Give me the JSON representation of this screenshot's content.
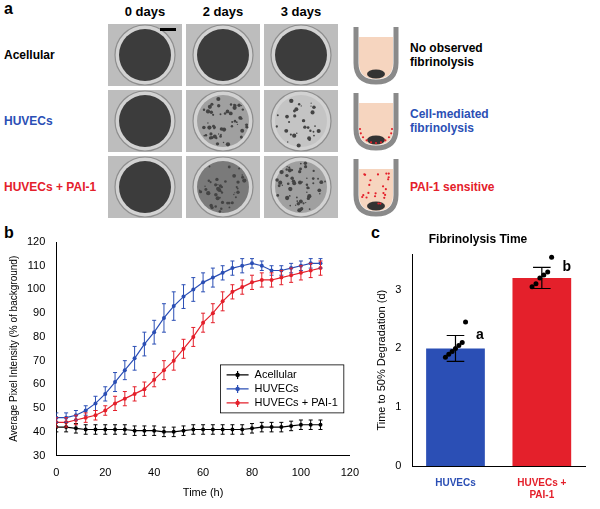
{
  "panel_a": {
    "panel": "a",
    "columns": [
      "0 days",
      "2 days",
      "3 days"
    ],
    "rows": [
      {
        "name": "Acellular",
        "color": "#000000",
        "note": "No observed fibrinolysis"
      },
      {
        "name": "HUVECs",
        "color": "#2b4fb5",
        "note": "Cell-mediated fibrinolysis"
      },
      {
        "name": "HUVECs + PAI-1",
        "color": "#e4202b",
        "note": "PAI-1 sensitive"
      }
    ]
  },
  "chart_data": [
    {
      "panel": "b",
      "type": "line",
      "x_label": "Time (h)",
      "y_label": "Average Pixel Intensity (% of background)",
      "xlim": [
        0,
        120
      ],
      "xticks": [
        0,
        20,
        40,
        60,
        80,
        100,
        120
      ],
      "ylim": [
        30,
        120
      ],
      "yticks": [
        30,
        40,
        50,
        60,
        70,
        80,
        90,
        100,
        110,
        120
      ],
      "grid": false,
      "legend": "lower right",
      "x": [
        0,
        4,
        8,
        12,
        16,
        20,
        24,
        28,
        32,
        36,
        40,
        44,
        48,
        52,
        56,
        60,
        64,
        68,
        72,
        76,
        80,
        84,
        88,
        92,
        96,
        100,
        104,
        108
      ],
      "series": [
        {
          "name": "Acellular",
          "color": "#000000",
          "marker": "circle",
          "values": [
            42,
            42,
            41.5,
            41,
            41,
            41,
            41,
            41,
            40.5,
            40.5,
            40.5,
            40,
            40,
            40.5,
            41,
            41,
            41,
            41,
            41,
            41,
            41.5,
            42,
            42,
            42,
            42.5,
            43,
            43,
            43
          ],
          "errors": [
            2,
            2,
            2,
            2,
            2,
            2,
            2,
            2,
            2,
            2,
            2,
            2,
            2,
            2,
            2,
            2,
            2,
            2,
            2,
            2,
            2,
            2,
            2,
            2,
            2,
            2,
            2,
            2
          ]
        },
        {
          "name": "HUVECs",
          "color": "#2b4fb5",
          "marker": "circle",
          "values": [
            46,
            46,
            47,
            49,
            52,
            56,
            61,
            66,
            71,
            77,
            82,
            88,
            93,
            97,
            100,
            103,
            105,
            107,
            109,
            110,
            111,
            110,
            108,
            108,
            109,
            110,
            111,
            111
          ],
          "errors": [
            2,
            2,
            2,
            2,
            3,
            3,
            4,
            4,
            5,
            5,
            5,
            6,
            6,
            5,
            5,
            4,
            4,
            3,
            3,
            3,
            2,
            2,
            2,
            2,
            2,
            2,
            2,
            2
          ]
        },
        {
          "name": "HUVECs + PAI-1",
          "color": "#e4202b",
          "marker": "circle",
          "values": [
            44,
            44,
            45,
            46,
            47,
            49,
            52,
            54,
            56,
            58,
            62,
            66,
            70,
            75,
            80,
            86,
            90,
            95,
            99,
            101,
            103,
            104,
            104,
            105,
            106,
            107,
            108,
            109
          ],
          "errors": [
            2,
            2,
            2,
            2,
            2,
            2,
            3,
            3,
            3,
            3,
            3,
            4,
            4,
            4,
            4,
            4,
            4,
            4,
            3,
            3,
            3,
            3,
            3,
            3,
            3,
            3,
            3,
            3
          ]
        }
      ]
    },
    {
      "panel": "c",
      "type": "bar",
      "title": "Fibrinolysis Time",
      "y_label": "Time to 50% Degradation (d)",
      "categories": [
        "HUVECs",
        "HUVECs + PAI-1"
      ],
      "values": [
        2.0,
        3.2
      ],
      "errors": [
        0.22,
        0.18
      ],
      "colors": [
        "#2b4fb5",
        "#e4202b"
      ],
      "points": [
        [
          1.85,
          1.9,
          1.95,
          2.0,
          2.05,
          2.1,
          2.45
        ],
        [
          3.05,
          3.1,
          3.2,
          3.25,
          3.3,
          3.55
        ]
      ],
      "annotations": [
        "a",
        "b"
      ],
      "ylim": [
        0,
        3.6
      ],
      "yticks": [
        0,
        1,
        2,
        3
      ],
      "grid": false
    }
  ]
}
